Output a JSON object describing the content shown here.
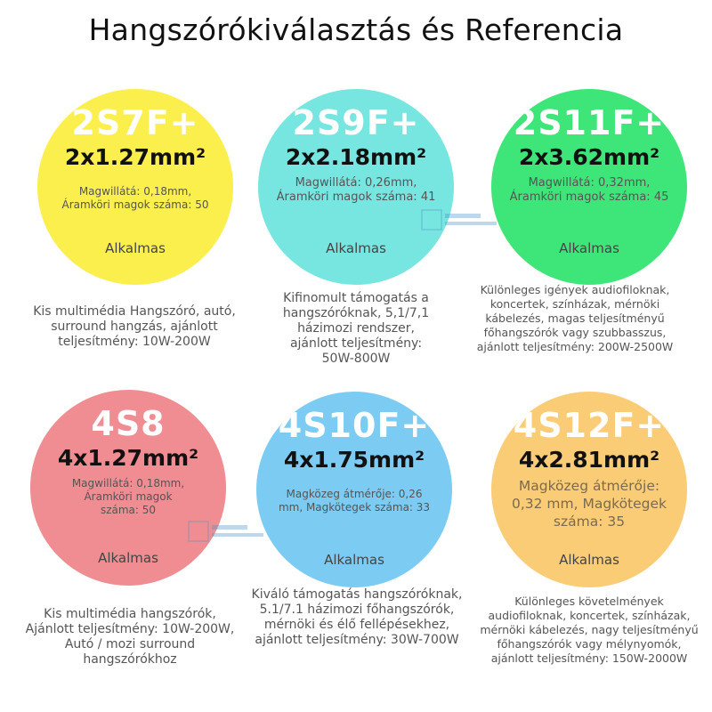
{
  "title": "Hangszórókiválasztás és Referencia",
  "colors": {
    "yellow": "#fbef4d",
    "cyan": "#78e6e0",
    "green": "#3ee67a",
    "pink": "#ef8d92",
    "blue": "#7ccbf3",
    "orange": "#fbcc76"
  },
  "cards": [
    {
      "code": "2S7F+",
      "cross_section": "2x1.27mm²",
      "spec": "Magwillátá: 0,18mm, Áramköri magok száma: 50",
      "suitable": "Alkalmas",
      "description": "Kis multimédia Hangszóró, autó, surround hangzás, ajánlott teljesítmény: 10W-200W"
    },
    {
      "code": "2S9F+",
      "cross_section": "2x2.18mm²",
      "spec": "Magwillátá: 0,26mm, Áramköri magok száma: 41",
      "suitable": "Alkalmas",
      "description": "Kifinomult támogatás a hangszóróknak, 5,1/7,1 házimozi rendszer, ajánlott teljesítmény: 50W-800W"
    },
    {
      "code": "2S11F+",
      "cross_section": "2x3.62mm²",
      "spec": "Magwillátá: 0,32mm, Áramköri magok száma: 45",
      "suitable": "Alkalmas",
      "description": "Különleges igények audiofiloknak, koncertek, színházak, mérnöki kábelezés, magas teljesítményű főhangszórók vagy szubbasszus, ajánlott teljesítmény: 200W-2500W"
    },
    {
      "code": "4S8",
      "cross_section": "4x1.27mm²",
      "spec": "Magwillátá: 0,18mm, Áramköri magok száma: 50",
      "suitable": "Alkalmas",
      "description": "Kis multimédia hangszórók, Ajánlott teljesítmény: 10W-200W, Autó / mozi surround hangszórókhoz"
    },
    {
      "code": "4S10F+",
      "cross_section": "4x1.75mm²",
      "spec": "Magközeg átmérője: 0,26 mm, Magkötegek száma: 33",
      "suitable": "Alkalmas",
      "description": "Kiváló támogatás hangszóróknak, 5.1/7.1 házimozi főhangszórók, mérnöki és élő fellépésekhez, ajánlott teljesítmény: 30W-700W"
    },
    {
      "code": "4S12F+",
      "cross_section": "4x2.81mm²",
      "spec": "Magközeg átmérője: 0,32 mm, Magkötegek száma: 35",
      "suitable": "Alkalmas",
      "description": "Különleges követelmények audiofiloknak, koncertek, színházak, mérnöki kábelezés, nagy teljesítményű főhangszórók vagy mélynyomók, ajánlott teljesítmény: 150W-2000W"
    }
  ]
}
